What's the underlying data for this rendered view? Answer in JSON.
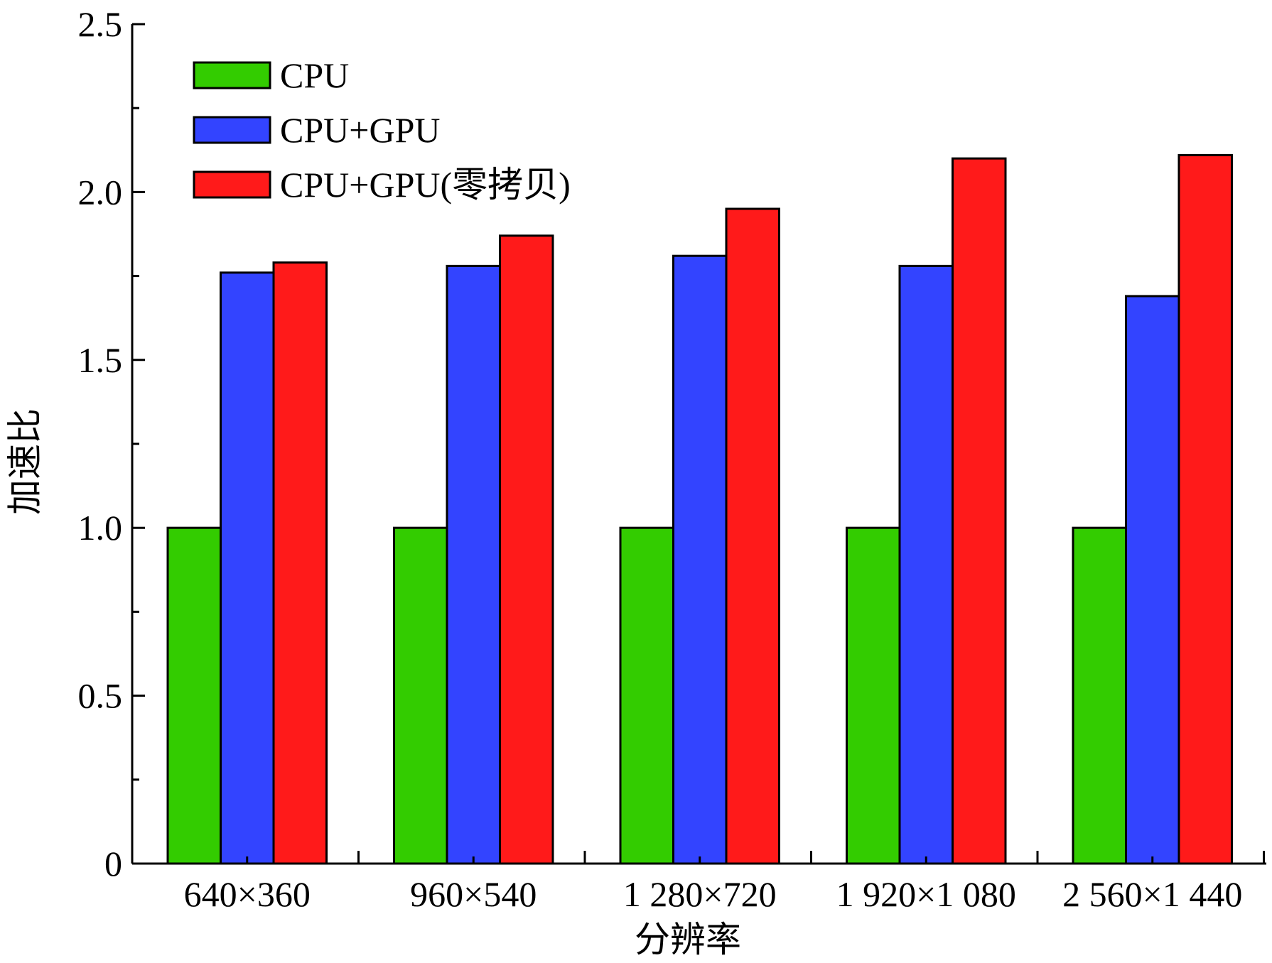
{
  "chart_data": {
    "type": "bar",
    "title": "",
    "xlabel": "分辨率",
    "ylabel": "加速比",
    "ylim": [
      0,
      2.5
    ],
    "yticks": [
      0,
      0.5,
      1.0,
      1.5,
      2.0,
      2.5
    ],
    "ytick_labels": [
      "0",
      "0.5",
      "1.0",
      "1.5",
      "2.0",
      "2.5"
    ],
    "categories": [
      "640×360",
      "960×540",
      "1 280×720",
      "1 920×1 080",
      "2 560×1 440"
    ],
    "series": [
      {
        "name": "CPU",
        "color": "#33cc00",
        "values": [
          1.0,
          1.0,
          1.0,
          1.0,
          1.0
        ]
      },
      {
        "name": "CPU+GPU",
        "color": "#3344ff",
        "values": [
          1.76,
          1.78,
          1.81,
          1.78,
          1.69
        ]
      },
      {
        "name": "CPU+GPU(零拷贝)",
        "color": "#ff1a1a",
        "values": [
          1.79,
          1.87,
          1.95,
          2.1,
          2.11
        ]
      }
    ],
    "legend_position": "top-left",
    "grid": false
  }
}
